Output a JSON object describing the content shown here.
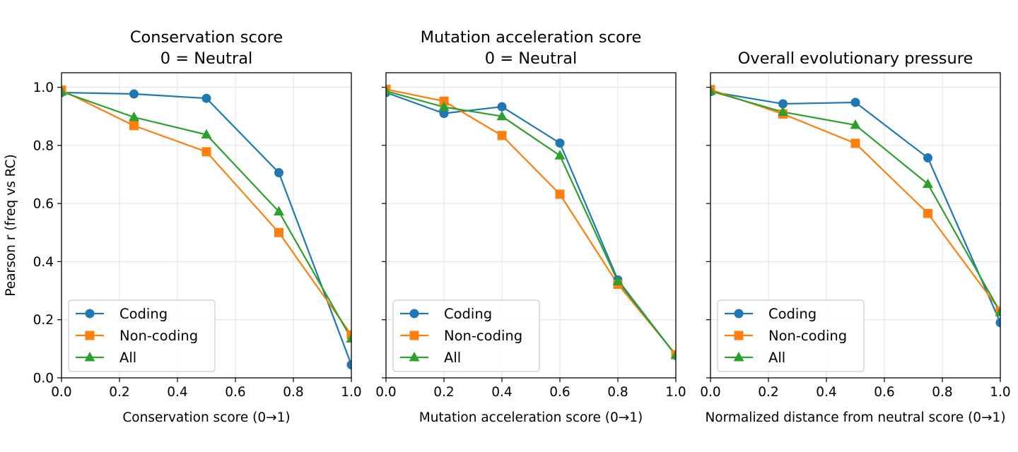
{
  "colors": {
    "coding": "#1f77b4",
    "noncoding": "#ff7f0e",
    "all": "#2ca02c",
    "grid": "#e0e0e0",
    "axis": "#000000"
  },
  "chart_data": [
    {
      "type": "line",
      "title": "Conservation score\n0 = Neutral",
      "xlabel": "Conservation score (0→1)",
      "ylabel": "Pearson r (freq vs RC)",
      "xlim": [
        0,
        1
      ],
      "ylim": [
        0,
        1.05
      ],
      "xticks": [
        "0.0",
        "0.2",
        "0.4",
        "0.6",
        "0.8",
        "1.0"
      ],
      "yticks": [
        "0.0",
        "0.2",
        "0.4",
        "0.6",
        "0.8",
        "1.0"
      ],
      "grid": true,
      "legend": "lower-left",
      "x": [
        0,
        0.25,
        0.5,
        0.75,
        1.0
      ],
      "series": [
        {
          "name": "Coding",
          "marker": "circle",
          "values": [
            0.982,
            0.977,
            0.962,
            0.706,
            0.045
          ]
        },
        {
          "name": "Non-coding",
          "marker": "square",
          "values": [
            0.99,
            0.868,
            0.778,
            0.5,
            0.148
          ]
        },
        {
          "name": "All",
          "marker": "triangle",
          "values": [
            0.985,
            0.897,
            0.837,
            0.572,
            0.135
          ]
        }
      ]
    },
    {
      "type": "line",
      "title": "Mutation acceleration score\n0 = Neutral",
      "xlabel": "Mutation acceleration score (0→1)",
      "ylabel": "",
      "xlim": [
        0,
        1
      ],
      "ylim": [
        0,
        1.05
      ],
      "xticks": [
        "0.0",
        "0.2",
        "0.4",
        "0.6",
        "0.8",
        "1.0"
      ],
      "yticks": [],
      "grid": true,
      "legend": "lower-left",
      "x": [
        0,
        0.2,
        0.4,
        0.6,
        0.8,
        1.0
      ],
      "series": [
        {
          "name": "Coding",
          "marker": "circle",
          "values": [
            0.982,
            0.91,
            0.933,
            0.808,
            0.337,
            0.077
          ]
        },
        {
          "name": "Non-coding",
          "marker": "square",
          "values": [
            0.993,
            0.952,
            0.834,
            0.632,
            0.322,
            0.08
          ]
        },
        {
          "name": "All",
          "marker": "triangle",
          "values": [
            0.987,
            0.932,
            0.9,
            0.765,
            0.332,
            0.078
          ]
        }
      ]
    },
    {
      "type": "line",
      "title": "Overall evolutionary pressure",
      "xlabel": "Normalized distance from neutral score (0→1)",
      "ylabel": "",
      "xlim": [
        0,
        1
      ],
      "ylim": [
        0,
        1.05
      ],
      "xticks": [
        "0.0",
        "0.2",
        "0.4",
        "0.6",
        "0.8",
        "1.0"
      ],
      "yticks": [],
      "grid": true,
      "legend": "lower-left",
      "x": [
        0,
        0.25,
        0.5,
        0.75,
        1.0
      ],
      "series": [
        {
          "name": "Coding",
          "marker": "circle",
          "values": [
            0.985,
            0.943,
            0.948,
            0.757,
            0.19
          ]
        },
        {
          "name": "Non-coding",
          "marker": "square",
          "values": [
            0.992,
            0.908,
            0.807,
            0.566,
            0.23
          ]
        },
        {
          "name": "All",
          "marker": "triangle",
          "values": [
            0.987,
            0.915,
            0.87,
            0.667,
            0.226
          ]
        }
      ]
    }
  ]
}
